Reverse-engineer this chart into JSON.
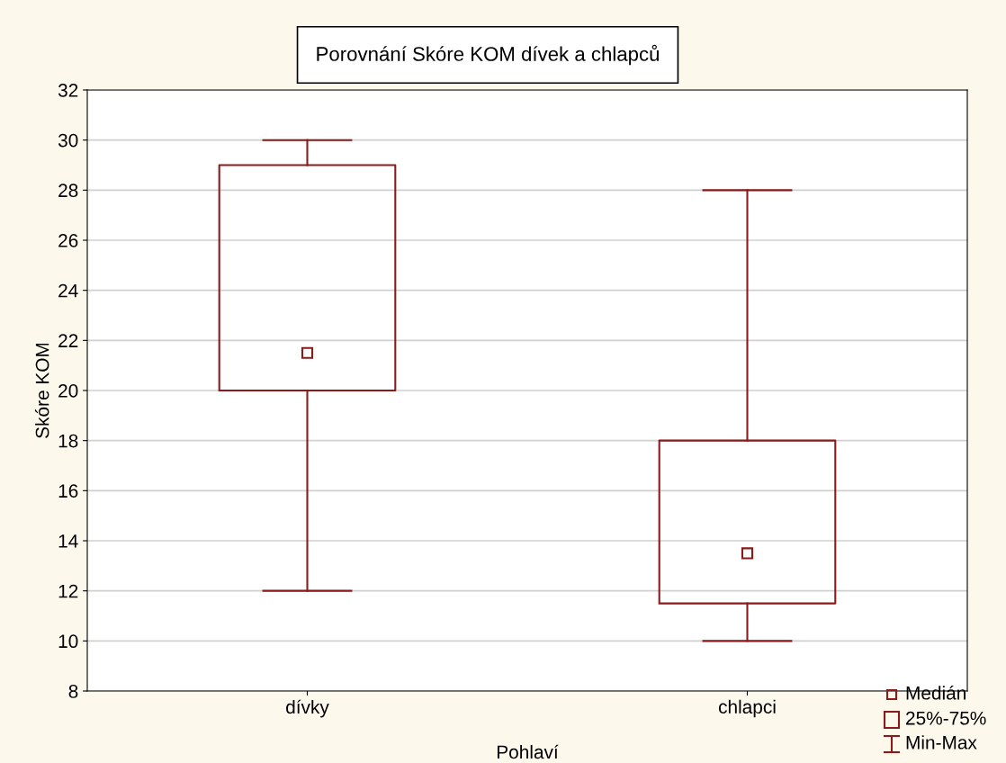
{
  "chart_data": {
    "type": "box",
    "title": "Porovnání Skóre KOM dívek a chlapců",
    "xlabel": "Pohlaví",
    "ylabel": "Skóre KOM",
    "categories": [
      "dívky",
      "chlapci"
    ],
    "series": [
      {
        "color": "#8b1a1a",
        "boxes": [
          {
            "low": 12,
            "q1": 20,
            "median": 21.5,
            "q3": 29,
            "high": 30
          },
          {
            "low": 10,
            "q1": 11.5,
            "median": 13.5,
            "q3": 18,
            "high": 28
          }
        ]
      }
    ],
    "annotations": [
      "Medián",
      "25%-75%",
      "Min-Max"
    ],
    "ylim": [
      8,
      32
    ],
    "yticks": [
      8,
      10,
      12,
      14,
      16,
      18,
      20,
      22,
      24,
      26,
      28,
      30,
      32
    ],
    "grid": "y",
    "marker": "square"
  }
}
